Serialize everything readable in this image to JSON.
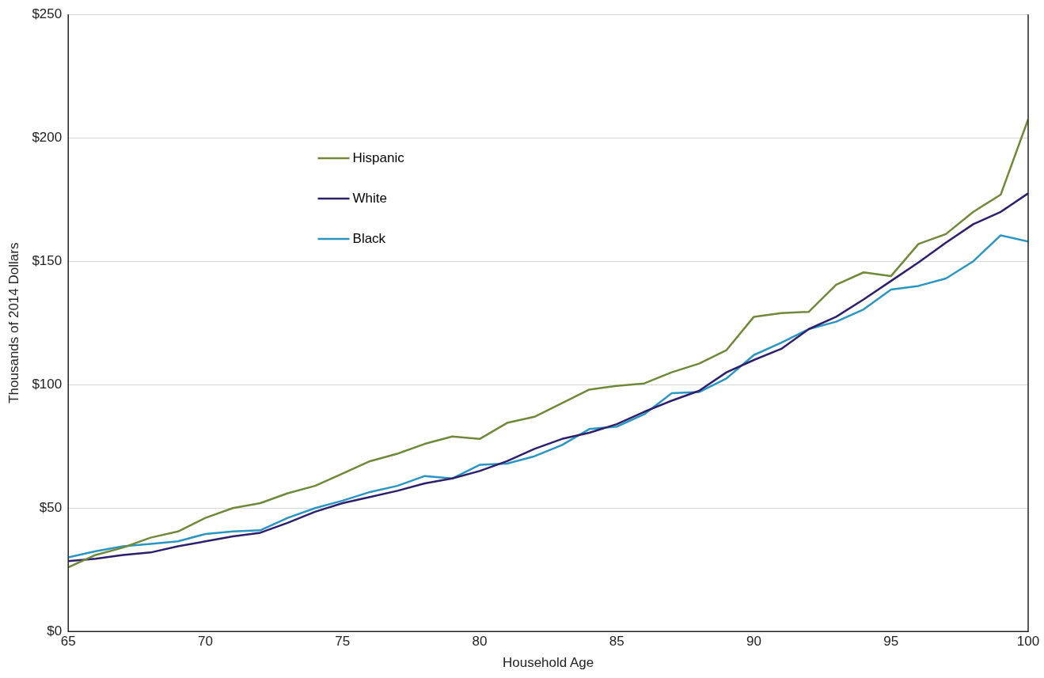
{
  "chart_data": {
    "type": "line",
    "xlabel": "Household Age",
    "ylabel": "Thousands of 2014 Dollars",
    "x": [
      65,
      66,
      67,
      68,
      69,
      70,
      71,
      72,
      73,
      74,
      75,
      76,
      77,
      78,
      79,
      80,
      81,
      82,
      83,
      84,
      85,
      86,
      87,
      88,
      89,
      90,
      91,
      92,
      93,
      94,
      95,
      96,
      97,
      98,
      99,
      100
    ],
    "series": [
      {
        "name": "Hispanic",
        "color": "#70883a",
        "values": [
          26,
          31,
          34,
          38,
          40.5,
          46,
          50,
          52,
          56,
          59,
          64,
          69,
          72,
          76,
          79,
          78,
          84.5,
          87,
          92.5,
          98,
          99.5,
          100.5,
          105,
          108.5,
          114,
          127.5,
          129,
          129.5,
          140.5,
          145.5,
          144,
          157,
          161,
          170,
          177,
          207.5
        ]
      },
      {
        "name": "White",
        "color": "#2e1f6b",
        "values": [
          28.5,
          29.5,
          31,
          32,
          34.5,
          36.5,
          38.5,
          40,
          44,
          48.5,
          52,
          54.5,
          57,
          60,
          62,
          65,
          69,
          74,
          78,
          80.5,
          84,
          89,
          93.5,
          97.5,
          105,
          110,
          114.5,
          122.5,
          127.5,
          134.5,
          142,
          149.5,
          157.5,
          165,
          170,
          177.5
        ]
      },
      {
        "name": "Black",
        "color": "#2b95c0",
        "values": [
          30,
          32.5,
          34.5,
          35.5,
          36.5,
          39.5,
          40.5,
          41,
          46,
          50,
          53,
          56.5,
          59,
          63,
          62,
          67.5,
          68,
          71,
          75.5,
          82,
          83,
          88,
          96.5,
          97,
          102.5,
          112,
          117,
          122.5,
          125.5,
          130.5,
          138.5,
          140,
          143,
          150,
          160.5,
          158
        ]
      }
    ],
    "xlim": [
      65,
      100
    ],
    "xticks": [
      65,
      70,
      75,
      80,
      85,
      90,
      95,
      100
    ],
    "ylim": [
      0,
      250
    ],
    "yticks": [
      {
        "value": 0,
        "label": "$0"
      },
      {
        "value": 50,
        "label": "$50"
      },
      {
        "value": 100,
        "label": "$100"
      },
      {
        "value": 150,
        "label": "$150"
      },
      {
        "value": 200,
        "label": "$200"
      },
      {
        "value": 250,
        "label": "$250"
      }
    ],
    "grid": "y",
    "legend": "top left",
    "marker": "none",
    "line_style": "solid"
  }
}
